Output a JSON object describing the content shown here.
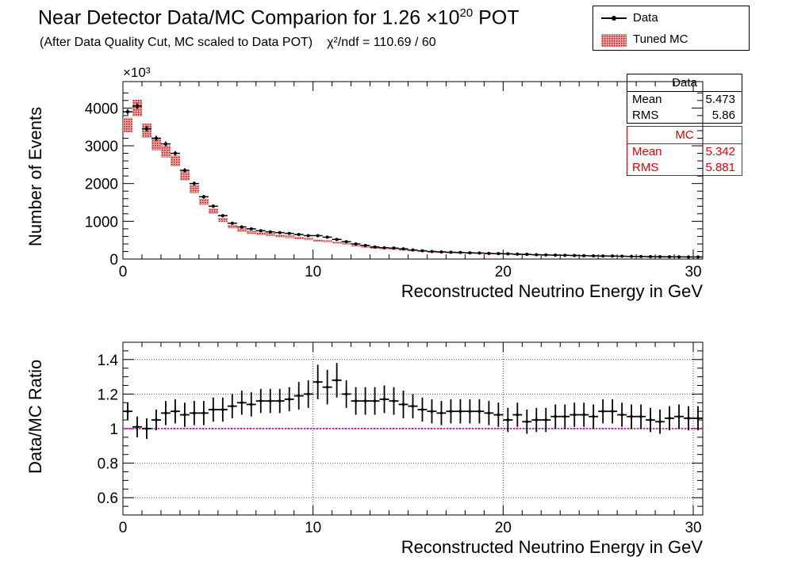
{
  "title_main": "Near Detector Data/MC Comparion for 1.26 ×10",
  "title_exp": "20",
  "title_tail": " POT",
  "subtitle": "(After Data Quality Cut, MC scaled to Data POT)",
  "chi_text": "χ²/ndf = 110.69 / 60",
  "legend": {
    "data_label": "Data",
    "mc_label": "Tuned MC"
  },
  "stats": {
    "data": {
      "header": "Data",
      "mean_label": "Mean",
      "mean": "5.473",
      "rms_label": "RMS",
      "rms": "5.86"
    },
    "mc": {
      "header": "MC",
      "mean_label": "Mean",
      "mean": "5.342",
      "rms_label": "RMS",
      "rms": "5.881"
    }
  },
  "colors": {
    "data": "#000000",
    "mc": "#cc2222",
    "ratio_line": "#ff00ff"
  },
  "chart_data": [
    {
      "type": "bar",
      "xlabel": "Reconstructed Neutrino Energy in GeV",
      "ylabel": "Number of Events",
      "y_multiplier_label": "×10³",
      "xlim": [
        0,
        30.5
      ],
      "ylim": [
        0,
        4700
      ],
      "xticks": [
        "0",
        "10",
        "20",
        "30"
      ],
      "yticks": [
        "0",
        "1000",
        "2000",
        "3000",
        "4000"
      ],
      "bin_width": 0.5,
      "x": [
        0.25,
        0.75,
        1.25,
        1.75,
        2.25,
        2.75,
        3.25,
        3.75,
        4.25,
        4.75,
        5.25,
        5.75,
        6.25,
        6.75,
        7.25,
        7.75,
        8.25,
        8.75,
        9.25,
        9.75,
        10.25,
        10.75,
        11.25,
        11.75,
        12.25,
        12.75,
        13.25,
        13.75,
        14.25,
        14.75,
        15.25,
        15.75,
        16.25,
        16.75,
        17.25,
        17.75,
        18.25,
        18.75,
        19.25,
        19.75,
        20.25,
        20.75,
        21.25,
        21.75,
        22.25,
        22.75,
        23.25,
        23.75,
        24.25,
        24.75,
        25.25,
        25.75,
        26.25,
        26.75,
        27.25,
        27.75,
        28.25,
        28.75,
        29.25,
        29.75,
        30.25
      ],
      "series": [
        {
          "name": "Data",
          "values": [
            3900,
            4050,
            3450,
            3200,
            3050,
            2800,
            2350,
            2000,
            1650,
            1400,
            1150,
            950,
            850,
            800,
            750,
            720,
            700,
            680,
            650,
            620,
            620,
            580,
            520,
            460,
            400,
            360,
            320,
            300,
            290,
            270,
            240,
            220,
            200,
            190,
            180,
            175,
            165,
            160,
            150,
            145,
            140,
            130,
            125,
            115,
            110,
            105,
            100,
            95,
            90,
            85,
            82,
            80,
            75,
            70,
            68,
            65,
            62,
            60,
            58,
            56,
            55
          ]
        },
        {
          "name": "Tuned MC",
          "values": [
            3550,
            4000,
            3400,
            3050,
            2850,
            2600,
            2200,
            1850,
            1520,
            1270,
            1040,
            860,
            770,
            710,
            670,
            650,
            610,
            590,
            560,
            530,
            490,
            470,
            440,
            400,
            350,
            320,
            290,
            270,
            260,
            240,
            215,
            200,
            183,
            175,
            165,
            160,
            150,
            145,
            137,
            133,
            128,
            118,
            114,
            105,
            100,
            96,
            91,
            86,
            82,
            77,
            75,
            72,
            68,
            63,
            62,
            59,
            56,
            54,
            53,
            51,
            50
          ]
        }
      ]
    },
    {
      "type": "scatter",
      "xlabel": "Reconstructed Neutrino Energy in GeV",
      "ylabel": "Data/MC Ratio",
      "xlim": [
        0,
        30.5
      ],
      "ylim": [
        0.5,
        1.5
      ],
      "xticks": [
        "0",
        "10",
        "20",
        "30"
      ],
      "yticks": [
        "0.6",
        "0.8",
        "1",
        "1.2",
        "1.4"
      ],
      "reference_line": 1.0,
      "x": [
        0.25,
        0.75,
        1.25,
        1.75,
        2.25,
        2.75,
        3.25,
        3.75,
        4.25,
        4.75,
        5.25,
        5.75,
        6.25,
        6.75,
        7.25,
        7.75,
        8.25,
        8.75,
        9.25,
        9.75,
        10.25,
        10.75,
        11.25,
        11.75,
        12.25,
        12.75,
        13.25,
        13.75,
        14.25,
        14.75,
        15.25,
        15.75,
        16.25,
        16.75,
        17.25,
        17.75,
        18.25,
        18.75,
        19.25,
        19.75,
        20.25,
        20.75,
        21.25,
        21.75,
        22.25,
        22.75,
        23.25,
        23.75,
        24.25,
        24.75,
        25.25,
        25.75,
        26.25,
        26.75,
        27.25,
        27.75,
        28.25,
        28.75,
        29.25,
        29.75,
        30.25
      ],
      "series": [
        {
          "name": "Data",
          "values": [
            1.1,
            1.01,
            1.0,
            1.05,
            1.09,
            1.1,
            1.08,
            1.09,
            1.09,
            1.11,
            1.11,
            1.13,
            1.15,
            1.14,
            1.16,
            1.16,
            1.16,
            1.17,
            1.19,
            1.2,
            1.27,
            1.24,
            1.28,
            1.2,
            1.16,
            1.16,
            1.16,
            1.17,
            1.16,
            1.14,
            1.13,
            1.11,
            1.1,
            1.09,
            1.1,
            1.1,
            1.1,
            1.1,
            1.09,
            1.08,
            1.05,
            1.08,
            1.04,
            1.05,
            1.05,
            1.07,
            1.07,
            1.08,
            1.08,
            1.07,
            1.1,
            1.1,
            1.08,
            1.07,
            1.07,
            1.05,
            1.04,
            1.06,
            1.07,
            1.06,
            1.06
          ],
          "errors": [
            0.05,
            0.06,
            0.06,
            0.06,
            0.07,
            0.07,
            0.07,
            0.07,
            0.07,
            0.07,
            0.07,
            0.07,
            0.07,
            0.07,
            0.07,
            0.07,
            0.07,
            0.07,
            0.08,
            0.08,
            0.1,
            0.1,
            0.1,
            0.08,
            0.08,
            0.08,
            0.08,
            0.08,
            0.08,
            0.08,
            0.07,
            0.07,
            0.07,
            0.07,
            0.07,
            0.07,
            0.07,
            0.07,
            0.07,
            0.07,
            0.07,
            0.07,
            0.07,
            0.07,
            0.07,
            0.07,
            0.07,
            0.07,
            0.07,
            0.07,
            0.07,
            0.07,
            0.07,
            0.07,
            0.07,
            0.07,
            0.07,
            0.07,
            0.07,
            0.07,
            0.07
          ]
        }
      ]
    }
  ]
}
